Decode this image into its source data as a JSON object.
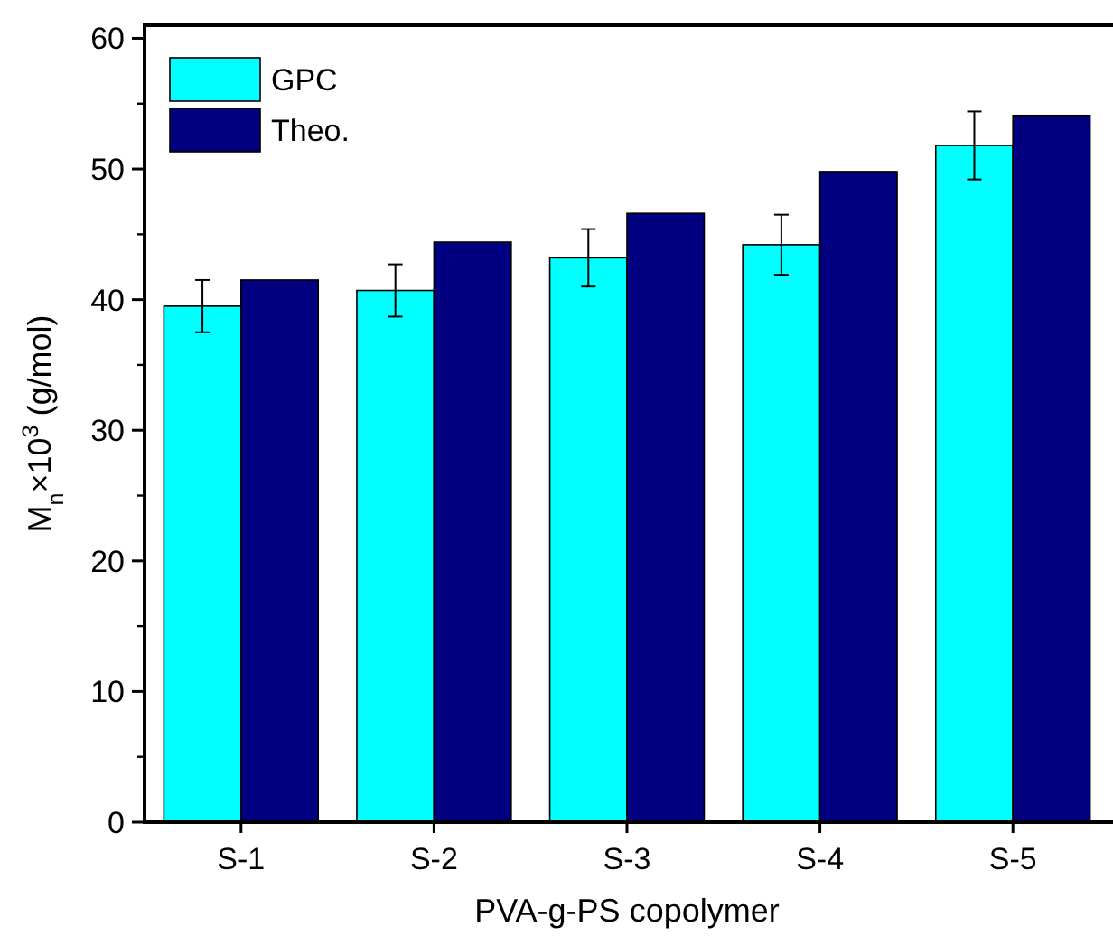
{
  "chart_data": {
    "type": "bar",
    "xlabel": "PVA-g-PS copolymer",
    "ylabel": "M$_{n}$×10$^{3}$ (g/mol)",
    "categories": [
      "S-1",
      "S-2",
      "S-3",
      "S-4",
      "S-5"
    ],
    "series": [
      {
        "name": "GPC",
        "color": "#00ffff",
        "values": [
          39.5,
          40.7,
          43.2,
          44.2,
          51.8
        ],
        "errors": [
          2,
          2,
          2.2,
          2.3,
          2.6
        ]
      },
      {
        "name": "Theo.",
        "color": "#000080",
        "values": [
          41.5,
          44.4,
          46.6,
          49.8,
          54.1
        ]
      }
    ],
    "ylim": [
      0,
      61
    ],
    "yticks": [
      0,
      10,
      20,
      30,
      40,
      50,
      60
    ],
    "legend": "top left",
    "grid": false
  }
}
